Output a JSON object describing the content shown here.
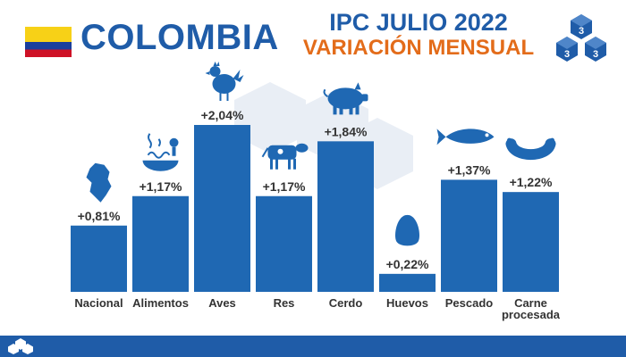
{
  "header": {
    "country": "COLOMBIA",
    "title": "IPC JULIO 2022",
    "subtitle": "VARIACIÓN MENSUAL"
  },
  "colors": {
    "brand_blue": "#1f5ca8",
    "bar_blue": "#1f68b3",
    "accent_orange": "#e36c1a",
    "label_gray": "#333333",
    "flag_yellow": "#f7d117",
    "flag_blue": "#1a3f9c",
    "flag_red": "#ce1126"
  },
  "icons": {
    "Alimentos": "food-icon",
    "Aves": "chicken-icon",
    "Res": "cow-icon",
    "Cerdo": "pig-icon",
    "Huevos": "egg-icon",
    "Pescado": "fish-icon",
    "Carne procesada": "sausage-icon",
    "Nacional": "colombia-map-icon"
  },
  "chart_data": {
    "type": "bar",
    "title": "IPC JULIO 2022",
    "subtitle": "VARIACIÓN MENSUAL",
    "xlabel": "",
    "ylabel": "",
    "unit": "%",
    "categories": [
      "Nacional",
      "Alimentos",
      "Aves",
      "Res",
      "Cerdo",
      "Huevos",
      "Pescado",
      "Carne procesada"
    ],
    "category_lines": [
      [
        "Nacional"
      ],
      [
        "Alimentos"
      ],
      [
        "Aves"
      ],
      [
        "Res"
      ],
      [
        "Cerdo"
      ],
      [
        "Huevos"
      ],
      [
        "Pescado"
      ],
      [
        "Carne",
        "procesada"
      ]
    ],
    "values": [
      0.81,
      1.17,
      2.04,
      1.17,
      1.84,
      0.22,
      1.37,
      1.22
    ],
    "value_labels": [
      "+0,81%",
      "+1,17%",
      "+2,04%",
      "+1,17%",
      "+1,84%",
      "+0,22%",
      "+1,37%",
      "+1,22%"
    ],
    "ylim": [
      0,
      2.04
    ],
    "grid": false,
    "legend": "none"
  }
}
